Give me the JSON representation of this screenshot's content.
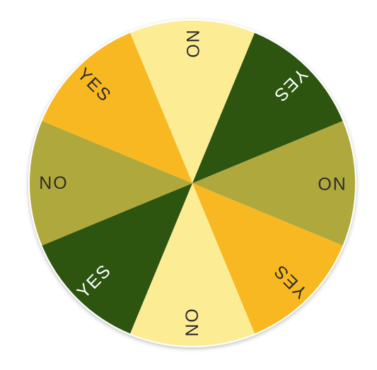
{
  "wheel": {
    "segments": [
      {
        "label": "NO",
        "color": "#fced95",
        "text_color": "#2c2c2c"
      },
      {
        "label": "YES",
        "color": "#2d5510",
        "text_color": "#ffffff"
      },
      {
        "label": "NO",
        "color": "#afa83c",
        "text_color": "#2c2c2c"
      },
      {
        "label": "YES",
        "color": "#f8b821",
        "text_color": "#2c2c2c"
      },
      {
        "label": "NO",
        "color": "#fced95",
        "text_color": "#2c2c2c"
      },
      {
        "label": "YES",
        "color": "#2d5510",
        "text_color": "#ffffff"
      },
      {
        "label": "NO",
        "color": "#afa83c",
        "text_color": "#2c2c2c"
      },
      {
        "label": "YES",
        "color": "#f8b821",
        "text_color": "#2c2c2c"
      }
    ]
  }
}
